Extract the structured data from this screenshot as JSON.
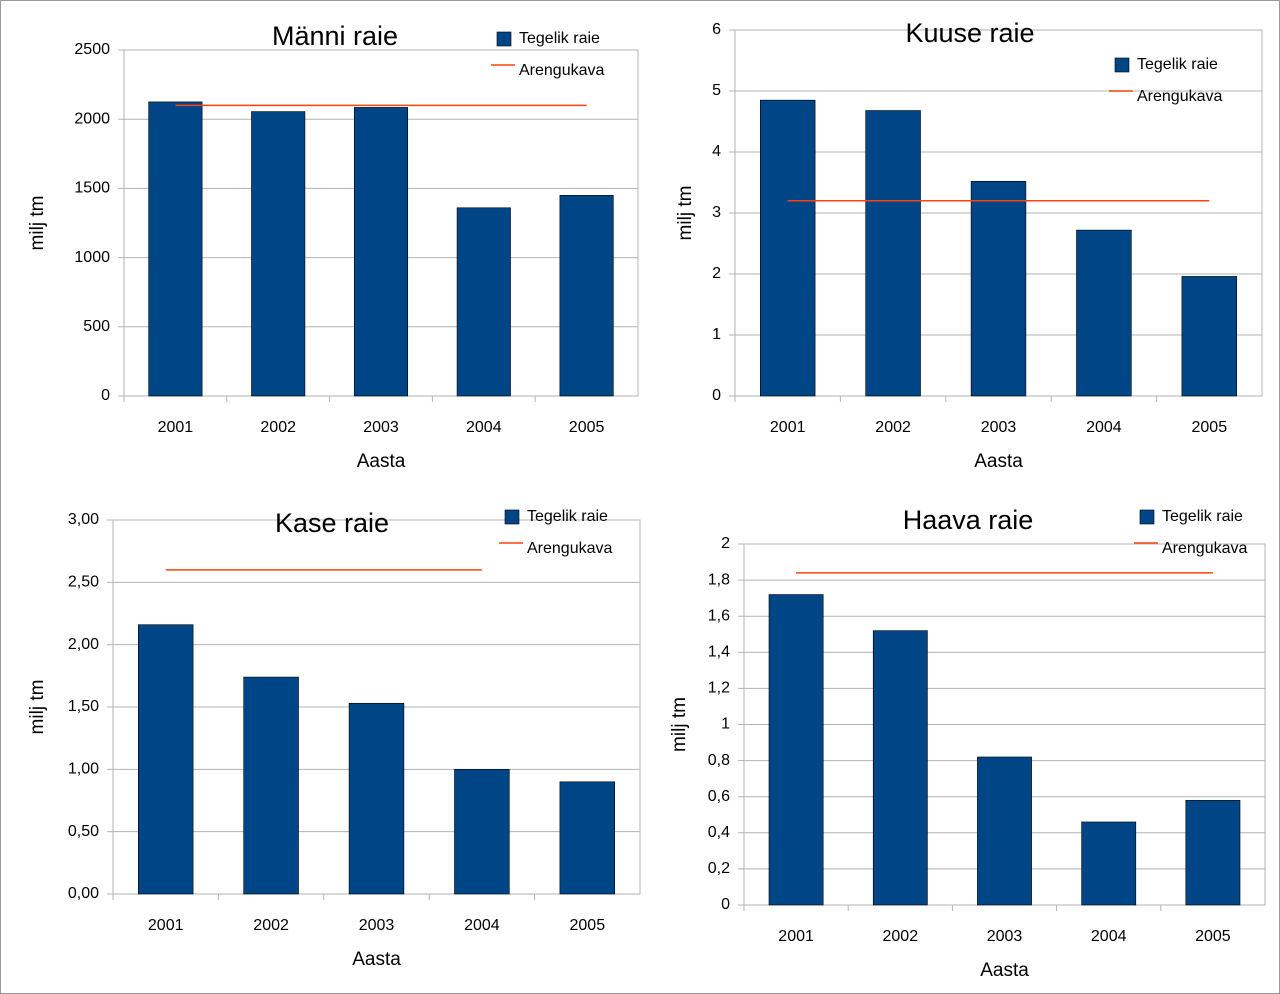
{
  "chart_data": [
    {
      "type": "bar",
      "title": "Männi raie",
      "x_label": "Aasta",
      "y_label": "milj tm",
      "categories": [
        "2001",
        "2002",
        "2003",
        "2004",
        "2005"
      ],
      "series": [
        {
          "name": "Tegelik raie",
          "type": "bar",
          "color": "#004586",
          "values": [
            2125,
            2055,
            2085,
            1360,
            1450
          ]
        },
        {
          "name": "Arengukava",
          "type": "line",
          "color": "#ff420e",
          "values": [
            2100,
            2100,
            2100,
            2100,
            2100
          ]
        }
      ],
      "ylim": [
        0,
        2500
      ],
      "yticks": [
        0,
        500,
        1000,
        1500,
        2000,
        2500
      ],
      "grid": true,
      "legend": "top-right"
    },
    {
      "type": "bar",
      "title": "Kuuse raie",
      "x_label": "Aasta",
      "y_label": "milj tm",
      "categories": [
        "2001",
        "2002",
        "2003",
        "2004",
        "2005"
      ],
      "series": [
        {
          "name": "Tegelik raie",
          "type": "bar",
          "color": "#004586",
          "values": [
            4.85,
            4.68,
            3.52,
            2.72,
            1.96
          ]
        },
        {
          "name": "Arengukava",
          "type": "line",
          "color": "#ff420e",
          "values": [
            3.2,
            3.2,
            3.2,
            3.2,
            3.2
          ]
        }
      ],
      "ylim": [
        0,
        6
      ],
      "yticks": [
        0,
        1,
        2,
        3,
        4,
        5,
        6
      ],
      "grid": true,
      "legend": "top-right"
    },
    {
      "type": "bar",
      "title": "Kase raie",
      "x_label": "Aasta",
      "y_label": "milj tm",
      "categories": [
        "2001",
        "2002",
        "2003",
        "2004",
        "2005"
      ],
      "series": [
        {
          "name": "Tegelik raie",
          "type": "bar",
          "color": "#004586",
          "values": [
            2.16,
            1.74,
            1.53,
            1.0,
            0.9
          ]
        },
        {
          "name": "Arengukava",
          "type": "line",
          "color": "#ff420e",
          "values": [
            2.6,
            2.6,
            2.6,
            2.6,
            null
          ]
        }
      ],
      "ylim": [
        0,
        3
      ],
      "yticks": [
        {
          "value": 0,
          "label": "0,00"
        },
        {
          "value": 0.5,
          "label": "0,50"
        },
        {
          "value": 1,
          "label": "1,00"
        },
        {
          "value": 1.5,
          "label": "1,50"
        },
        {
          "value": 2,
          "label": "2,00"
        },
        {
          "value": 2.5,
          "label": "2,50"
        },
        {
          "value": 3,
          "label": "3,00"
        }
      ],
      "grid": true,
      "legend": "top-right"
    },
    {
      "type": "bar",
      "title": "Haava raie",
      "x_label": "Aasta",
      "y_label": "milj tm",
      "categories": [
        "2001",
        "2002",
        "2003",
        "2004",
        "2005"
      ],
      "series": [
        {
          "name": "Tegelik raie",
          "type": "bar",
          "color": "#004586",
          "values": [
            1.72,
            1.52,
            0.82,
            0.46,
            0.58
          ]
        },
        {
          "name": "Arengukava",
          "type": "line",
          "color": "#ff420e",
          "values": [
            1.84,
            1.84,
            1.84,
            1.84,
            1.84
          ]
        }
      ],
      "ylim": [
        0,
        2
      ],
      "yticks": [
        0,
        {
          "value": 0.2,
          "label": "0,2"
        },
        {
          "value": 0.4,
          "label": "0,4"
        },
        {
          "value": 0.6,
          "label": "0,6"
        },
        {
          "value": 0.8,
          "label": "0,8"
        },
        1,
        {
          "value": 1.2,
          "label": "1,2"
        },
        {
          "value": 1.4,
          "label": "1,4"
        },
        {
          "value": 1.6,
          "label": "1,6"
        },
        {
          "value": 1.8,
          "label": "1,8"
        },
        2
      ],
      "grid": true,
      "legend": "top-right"
    }
  ]
}
